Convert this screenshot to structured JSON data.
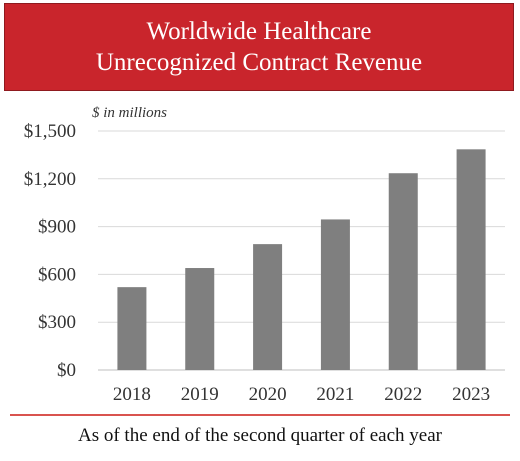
{
  "title": {
    "line1": "Worldwide Healthcare",
    "line2": "Unrecognized Contract Revenue"
  },
  "units_note": "$ in millions",
  "footnote": "As of the end of the second quarter of each year",
  "colors": {
    "banner": "#c9252c",
    "bar": "#7f7f7f",
    "grid": "#d9d9d9",
    "divider": "#d9534f"
  },
  "chart_data": {
    "type": "bar",
    "categories": [
      "2018",
      "2019",
      "2020",
      "2021",
      "2022",
      "2023"
    ],
    "values": [
      520,
      640,
      790,
      945,
      1235,
      1385
    ],
    "ylim": [
      0,
      1500
    ],
    "yticks": [
      0,
      300,
      600,
      900,
      1200,
      1500
    ],
    "ytick_labels": [
      "$0",
      "$300",
      "$600",
      "$900",
      "$1,200",
      "$1,500"
    ],
    "grid": true,
    "legend": "none"
  }
}
